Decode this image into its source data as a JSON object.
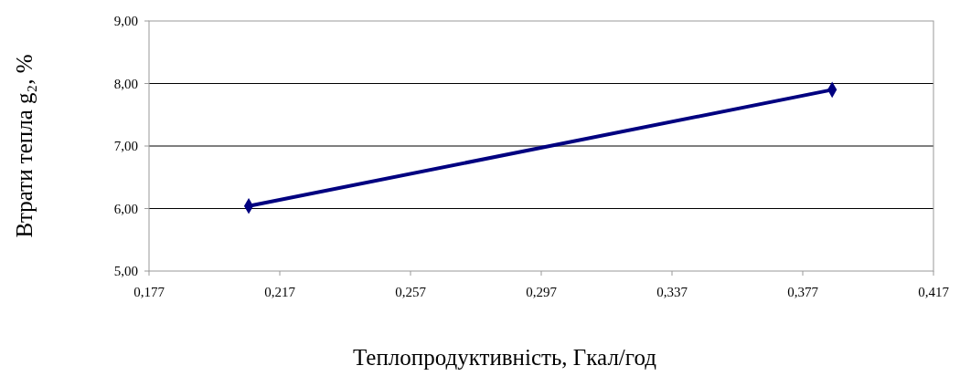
{
  "chart_data": {
    "type": "line",
    "xlabel": "Теплопродуктивність, Гкал/год",
    "ylabel": "Втрати тепла g₂, %",
    "x": [
      0.2075,
      0.386
    ],
    "series": [
      {
        "color": "#000080",
        "values": [
          6.04,
          7.9
        ]
      }
    ],
    "xlim": [
      0.177,
      0.417
    ],
    "xticks": [
      {
        "value": 0.177,
        "label": "0,177"
      },
      {
        "value": 0.217,
        "label": "0,217"
      },
      {
        "value": 0.257,
        "label": "0,257"
      },
      {
        "value": 0.297,
        "label": "0,297"
      },
      {
        "value": 0.337,
        "label": "0,337"
      },
      {
        "value": 0.377,
        "label": "0,377"
      },
      {
        "value": 0.417,
        "label": "0,417"
      }
    ],
    "ylim": [
      5,
      9
    ],
    "yticks": [
      {
        "value": 5,
        "label": "5,00"
      },
      {
        "value": 6,
        "label": "6,00"
      },
      {
        "value": 7,
        "label": "7,00"
      },
      {
        "value": 8,
        "label": "8,00"
      },
      {
        "value": 9,
        "label": "9,00"
      }
    ],
    "grid": "y",
    "marker": "diamond",
    "line_style": "solid"
  }
}
